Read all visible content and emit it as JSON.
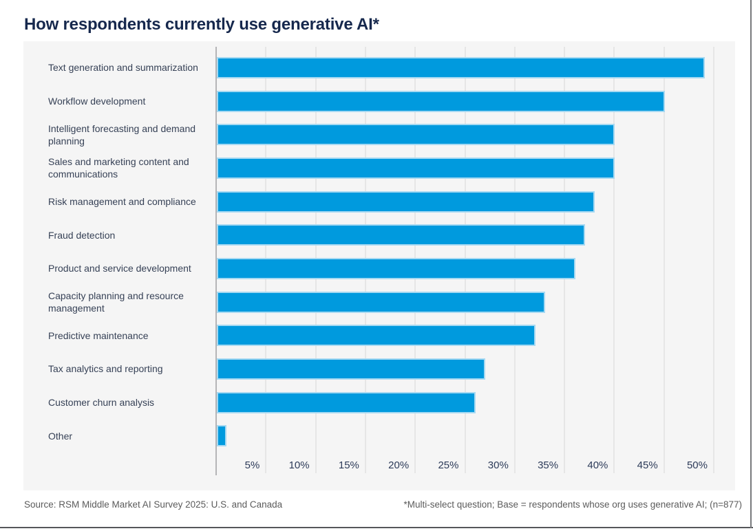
{
  "title": "How respondents currently use generative AI*",
  "footer": {
    "source": "Source: RSM Middle Market AI Survey 2025: U.S. and Canada",
    "note": "*Multi-select question; Base = respondents whose org uses generative AI; (n=877)"
  },
  "chart_data": {
    "type": "bar",
    "orientation": "horizontal",
    "title": "How respondents currently use generative AI*",
    "xlabel": "",
    "ylabel": "",
    "unit": "%",
    "xlim": [
      0,
      52
    ],
    "grid": "vertical",
    "legend": "none",
    "categories": [
      "Text generation and summarization",
      "Workflow development",
      "Intelligent forecasting and demand planning",
      "Sales and marketing content and communications",
      "Risk management and compliance",
      "Fraud detection",
      "Product and service development",
      "Capacity planning and resource management",
      "Predictive maintenance",
      "Tax analytics and reporting",
      "Customer churn analysis",
      "Other"
    ],
    "values": [
      49,
      45,
      40,
      40,
      38,
      37,
      36,
      33,
      32,
      27,
      26,
      1
    ],
    "x_ticks": [
      5,
      10,
      15,
      20,
      25,
      30,
      35,
      40,
      45,
      50
    ],
    "x_tick_labels": [
      "5%",
      "10%",
      "15%",
      "20%",
      "25%",
      "30%",
      "35%",
      "40%",
      "45%",
      "50%"
    ],
    "colors": {
      "bar_fill": "#009ADE",
      "bar_border": "#A6D9F2",
      "panel_background": "#F5F5F5",
      "gridline": "#E6E6E6",
      "axis_line": "#B4B4B6",
      "title_text": "#16284D",
      "category_text": "#364156",
      "tick_text": "#2C3A58",
      "footer_text": "#5B5B5B"
    }
  }
}
